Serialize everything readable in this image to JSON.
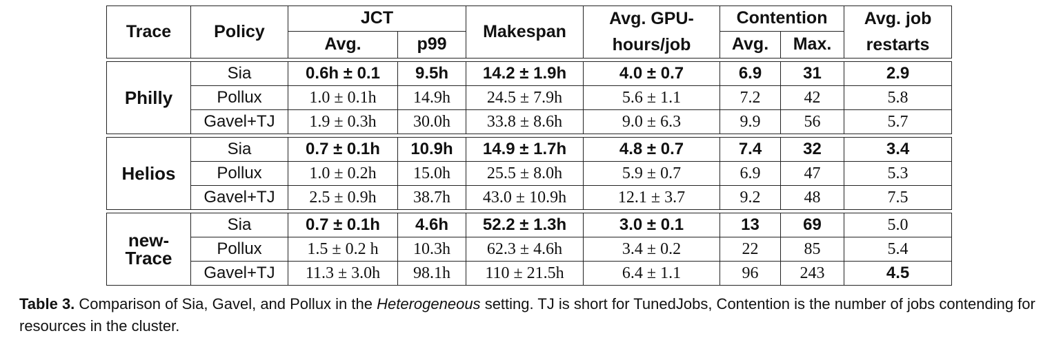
{
  "header": {
    "trace": "Trace",
    "policy": "Policy",
    "jct": "JCT",
    "jct_avg": "Avg.",
    "jct_p99": "p99",
    "makespan": "Makespan",
    "gpu_hours": "Avg. GPU-hours/job",
    "contention": "Contention",
    "contention_avg": "Avg.",
    "contention_max": "Max.",
    "restarts": "Avg. job restarts"
  },
  "groups": [
    {
      "trace": "Philly",
      "rows": [
        {
          "policy": "Sia",
          "jct_avg": "0.6h ± 0.1",
          "p99": "9.5h",
          "makespan": "14.2 ± 1.9h",
          "gpu_hours": "4.0 ± 0.7",
          "cont_avg": "6.9",
          "cont_max": "31",
          "restarts": "2.9"
        },
        {
          "policy": "Pollux",
          "jct_avg": "1.0 ± 0.1h",
          "p99": "14.9h",
          "makespan": "24.5 ± 7.9h",
          "gpu_hours": "5.6 ± 1.1",
          "cont_avg": "7.2",
          "cont_max": "42",
          "restarts": "5.8"
        },
        {
          "policy": "Gavel+TJ",
          "jct_avg": "1.9 ± 0.3h",
          "p99": "30.0h",
          "makespan": "33.8 ± 8.6h",
          "gpu_hours": "9.0 ± 6.3",
          "cont_avg": "9.9",
          "cont_max": "56",
          "restarts": "5.7"
        }
      ]
    },
    {
      "trace": "Helios",
      "rows": [
        {
          "policy": "Sia",
          "jct_avg": "0.7 ± 0.1h",
          "p99": "10.9h",
          "makespan": "14.9 ± 1.7h",
          "gpu_hours": "4.8 ± 0.7",
          "cont_avg": "7.4",
          "cont_max": "32",
          "restarts": "3.4"
        },
        {
          "policy": "Pollux",
          "jct_avg": "1.0 ± 0.2h",
          "p99": "15.0h",
          "makespan": "25.5 ± 8.0h",
          "gpu_hours": "5.9 ± 0.7",
          "cont_avg": "6.9",
          "cont_max": "47",
          "restarts": "5.3"
        },
        {
          "policy": "Gavel+TJ",
          "jct_avg": "2.5 ± 0.9h",
          "p99": "38.7h",
          "makespan": "43.0 ± 10.9h",
          "gpu_hours": "12.1 ± 3.7",
          "cont_avg": "9.2",
          "cont_max": "48",
          "restarts": "7.5"
        }
      ]
    },
    {
      "trace": "new-Trace",
      "rows": [
        {
          "policy": "Sia",
          "jct_avg": "0.7 ± 0.1h",
          "p99": "4.6h",
          "makespan": "52.2 ± 1.3h",
          "gpu_hours": "3.0 ± 0.1",
          "cont_avg": "13",
          "cont_max": "69",
          "restarts": "5.0"
        },
        {
          "policy": "Pollux",
          "jct_avg": "1.5 ± 0.2 h",
          "p99": "10.3h",
          "makespan": "62.3 ± 4.6h",
          "gpu_hours": "3.4 ± 0.2",
          "cont_avg": "22",
          "cont_max": "85",
          "restarts": "5.4"
        },
        {
          "policy": "Gavel+TJ",
          "jct_avg": "11.3 ± 3.0h",
          "p99": "98.1h",
          "makespan": "110 ± 21.5h",
          "gpu_hours": "6.4 ± 1.1",
          "cont_avg": "96",
          "cont_max": "243",
          "restarts": "4.5"
        }
      ]
    }
  ],
  "caption": {
    "label": "Table 3.",
    "text_before": "Comparison of Sia, Gavel, and Pollux in the",
    "emphasis": "Heterogeneous",
    "text_after": "setting. TJ is short for TunedJobs, Contention is the number of jobs contending for resources in the cluster."
  }
}
